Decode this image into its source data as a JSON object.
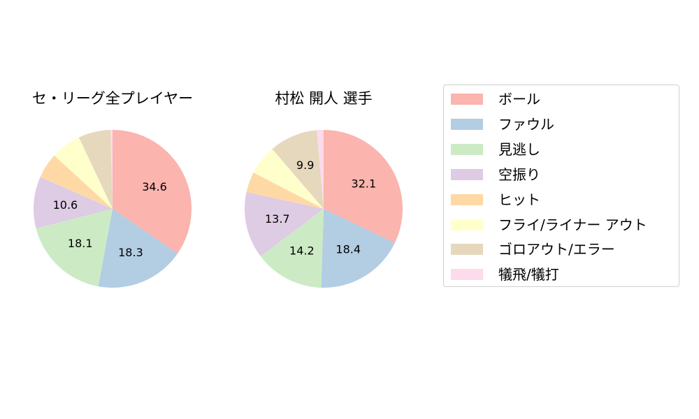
{
  "chart_data": [
    {
      "type": "pie",
      "title": "セ・リーグ全プレイヤー",
      "categories": [
        "ボール",
        "ファウル",
        "見逃し",
        "空振り",
        "ヒット",
        "フライ/ライナー アウト",
        "ゴロアウト/エラー",
        "犠飛/犠打"
      ],
      "values": [
        34.6,
        18.3,
        18.1,
        10.6,
        5.2,
        6.2,
        6.6,
        0.4
      ],
      "labels": [
        "34.6",
        "18.3",
        "18.1",
        "10.6",
        "",
        "",
        "",
        ""
      ],
      "start_angle": 90,
      "direction": "clockwise",
      "center": [
        161,
        299
      ],
      "radius": 113
    },
    {
      "type": "pie",
      "title": "村松 開人  選手",
      "categories": [
        "ボール",
        "ファウル",
        "見逃し",
        "空振り",
        "ヒット",
        "フライ/ライナー アウト",
        "ゴロアウト/エラー",
        "犠飛/犠打"
      ],
      "values": [
        32.1,
        18.4,
        14.2,
        13.7,
        4.2,
        6.1,
        9.9,
        1.4
      ],
      "labels": [
        "32.1",
        "18.4",
        "14.2",
        "13.7",
        "",
        "",
        "9.9",
        ""
      ],
      "start_angle": 90,
      "direction": "clockwise",
      "center": [
        463,
        299
      ],
      "radius": 113
    }
  ],
  "titles": {
    "left": "セ・リーグ全プレイヤー",
    "right": "村松 開人  選手"
  },
  "legend": {
    "position": "right",
    "items": [
      {
        "label": "ボール",
        "color": "#fbb4ae"
      },
      {
        "label": "ファウル",
        "color": "#b3cde3"
      },
      {
        "label": "見逃し",
        "color": "#ccebc5"
      },
      {
        "label": "空振り",
        "color": "#decbe4"
      },
      {
        "label": "ヒット",
        "color": "#fed9a6"
      },
      {
        "label": "フライ/ライナー アウト",
        "color": "#ffffcc"
      },
      {
        "label": "ゴロアウト/エラー",
        "color": "#e5d8bd"
      },
      {
        "label": "犠飛/犠打",
        "color": "#fddaec"
      }
    ]
  }
}
